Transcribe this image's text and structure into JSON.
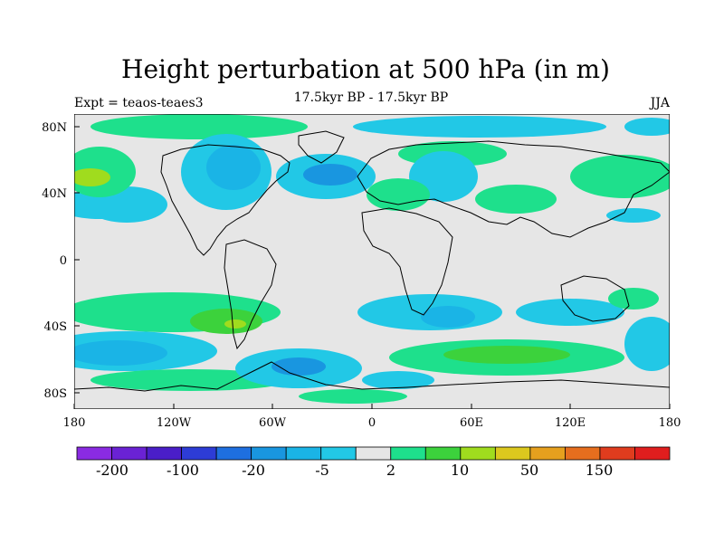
{
  "title": "Height perturbation at 500 hPa (in m)",
  "left_label": "Expt = teaos-teaes3",
  "center_label": "17.5kyr BP - 17.5kyr BP",
  "right_label": "JJA",
  "lat_ticks": [
    "80N",
    "40N",
    "0",
    "40S",
    "80S"
  ],
  "lon_ticks": [
    "180",
    "120W",
    "60W",
    "0",
    "60E",
    "120E",
    "180"
  ],
  "colorbar": {
    "colors": [
      "#8a2be2",
      "#6a22d4",
      "#4a1ec8",
      "#2d3cd6",
      "#1e6fe0",
      "#1996e0",
      "#1ab4e6",
      "#22c8e6",
      "#e6e6e6",
      "#1ee08c",
      "#3cd23c",
      "#a0dc1e",
      "#dcc81e",
      "#e6a01e",
      "#e66e1e",
      "#e03c1e",
      "#e01e1e"
    ],
    "labels": [
      "-200",
      "-100",
      "-20",
      "-5",
      "2",
      "10",
      "50",
      "150"
    ]
  },
  "map_colors": {
    "background": "#e6e6e6",
    "light_blue": "#22c8e6",
    "blue": "#1ab4e6",
    "mid_blue": "#1996e0",
    "deep_blue": "#1e6fe0",
    "green": "#1ee08c",
    "bright_green": "#3cd23c",
    "yellow_green": "#a0dc1e",
    "coast": "#000000"
  }
}
